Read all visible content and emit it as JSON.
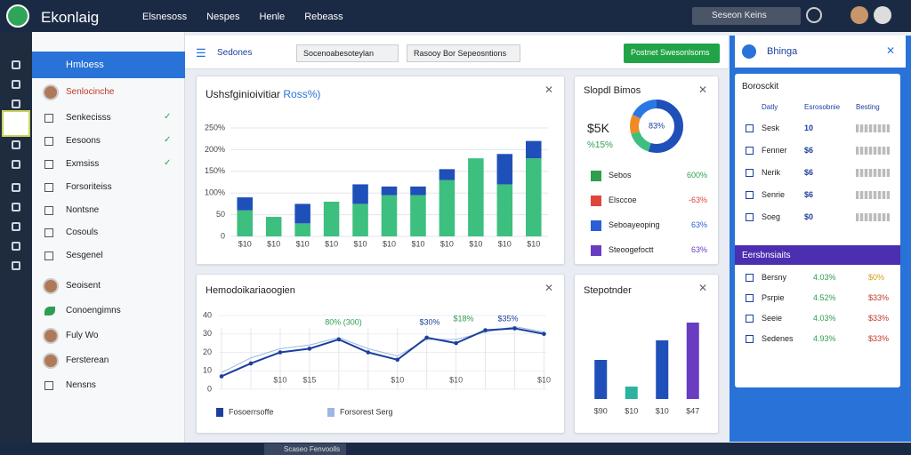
{
  "topbar": {
    "brand": "Ekonlaig",
    "nav": [
      "Elsnesoss",
      "Nespes",
      "Henle",
      "Rebeass"
    ],
    "search": "Seseon Keins"
  },
  "sidebar": {
    "header": "Hmloess",
    "items": [
      {
        "label": "Senlocinche",
        "kind": "avatar"
      },
      {
        "label": "Senkecisss",
        "kind": "check"
      },
      {
        "label": "Eesoons",
        "kind": "check"
      },
      {
        "label": "Exmsiss",
        "kind": "check"
      },
      {
        "label": "Forsoriteiss",
        "kind": "box"
      },
      {
        "label": "Nontsne",
        "kind": "box"
      },
      {
        "label": "Cosouls",
        "kind": "box"
      },
      {
        "label": "Sesgenel",
        "kind": "box"
      },
      {
        "label": "Seoisent",
        "kind": "avatar"
      },
      {
        "label": "Conoengimns",
        "kind": "leaf"
      },
      {
        "label": "Fuly Wo",
        "kind": "avatar"
      },
      {
        "label": "Fersterean",
        "kind": "avatar"
      },
      {
        "label": "Nensns",
        "kind": "box"
      }
    ]
  },
  "toolbar": {
    "dropdown": "Sedones",
    "filter1": "Socenoabesoteylan",
    "filter2": "Rasooy Bor Sepeosntions",
    "button": "Postnet Swesonlsoms"
  },
  "bar_panel": {
    "title": "Ushsfginioivitiar",
    "title_highlight": "Ross%)",
    "chart_data": {
      "type": "bar",
      "categories": [
        "$10",
        "$10",
        "$10",
        "$10",
        "$10",
        "$10",
        "$10",
        "$10",
        "$10",
        "$10",
        "$10"
      ],
      "series": [
        {
          "color": "#3cbf7f",
          "values": [
            60,
            45,
            30,
            80,
            75,
            95,
            95,
            130,
            180,
            120,
            180
          ]
        },
        {
          "color": "#1f4fb8",
          "values": [
            30,
            0,
            45,
            0,
            45,
            20,
            20,
            25,
            0,
            70,
            40
          ]
        }
      ],
      "ylim": [
        0,
        250
      ],
      "yticks": [
        0,
        {
          "value": 50,
          "label": "50"
        },
        {
          "value": 100,
          "label": "100%"
        },
        {
          "value": 150,
          "label": "150%"
        },
        {
          "value": 200,
          "label": "200%"
        },
        {
          "value": 250,
          "label": "250%"
        }
      ],
      "grid": true
    }
  },
  "donut_panel": {
    "title": "Slopdl Bimos",
    "big": "$5K",
    "sub": "%15%",
    "chart_data": {
      "type": "pie",
      "values": [
        55,
        15,
        12,
        18
      ],
      "colors": [
        "#1f4fb8",
        "#3cbf7f",
        "#f08a24",
        "#2b78e4"
      ],
      "center_label": "83%"
    },
    "legend": [
      {
        "label": "Sebos",
        "value": "600%",
        "color": "#2e9e4f"
      },
      {
        "label": "Elsccoe",
        "value": "-63%",
        "color": "#e0453a"
      },
      {
        "label": "Seboayeoping",
        "value": "63%",
        "color": "#2b5fd8"
      },
      {
        "label": "Steoogefoctt",
        "value": "63%",
        "color": "#6a3cc2"
      }
    ]
  },
  "line_panel": {
    "title": "Hemodoikariaoogien",
    "chart_data": {
      "type": "line",
      "categories": [
        null,
        null,
        "$10",
        "$15",
        null,
        null,
        "$10",
        null,
        "$10",
        null,
        null,
        "$10"
      ],
      "series": [
        {
          "name": "Fosoerrsoffe",
          "color": "#1c3f9e",
          "values": [
            7,
            14,
            20,
            22,
            27,
            20,
            16,
            28,
            25,
            32,
            33,
            30
          ]
        },
        {
          "name": "Forsorest Serg",
          "color": "#9db7e0",
          "values": [
            9,
            17,
            22,
            24,
            28,
            22,
            18,
            27,
            27,
            31,
            34,
            31
          ]
        }
      ],
      "ylim": [
        0,
        40
      ],
      "yticks": [
        0,
        10,
        20,
        30,
        40
      ],
      "grid": true,
      "annotations": [
        "80% (300)",
        "$30%",
        "$18%",
        "$35%"
      ]
    }
  },
  "small_bar_panel": {
    "title": "Stepotnder",
    "chart_data": {
      "type": "bar",
      "categories": [
        "$90",
        "$10",
        "$10",
        "$47"
      ],
      "values": [
        44,
        14,
        66,
        86
      ],
      "colors": [
        "#1f4fb8",
        "#2bb3a0",
        "#1f4fb8",
        "#6a3cc2"
      ],
      "ylim": [
        0,
        100
      ]
    }
  },
  "right_panel": {
    "title": "Bhinga",
    "card1": {
      "title": "Borosckit",
      "headers": [
        "Datly",
        "Esrosobnie",
        "Besting"
      ],
      "rows": [
        [
          "Sesk",
          "10"
        ],
        [
          "Fenner",
          "$6"
        ],
        [
          "Nerik",
          "$6"
        ],
        [
          "Senrie",
          "$6"
        ],
        [
          "Soeg",
          "$0"
        ]
      ]
    },
    "card2": {
      "title": "Eersbnsiaits",
      "rows": [
        [
          "Bersny",
          "4.03%",
          "$0%"
        ],
        [
          "Psrpie",
          "4.52%",
          "$33%"
        ],
        [
          "Seeie",
          "4.03%",
          "$33%"
        ],
        [
          "Sedenes",
          "4.93%",
          "$33%"
        ]
      ]
    }
  },
  "taskbar": {
    "app": "Scaseo Fenvoolls"
  }
}
